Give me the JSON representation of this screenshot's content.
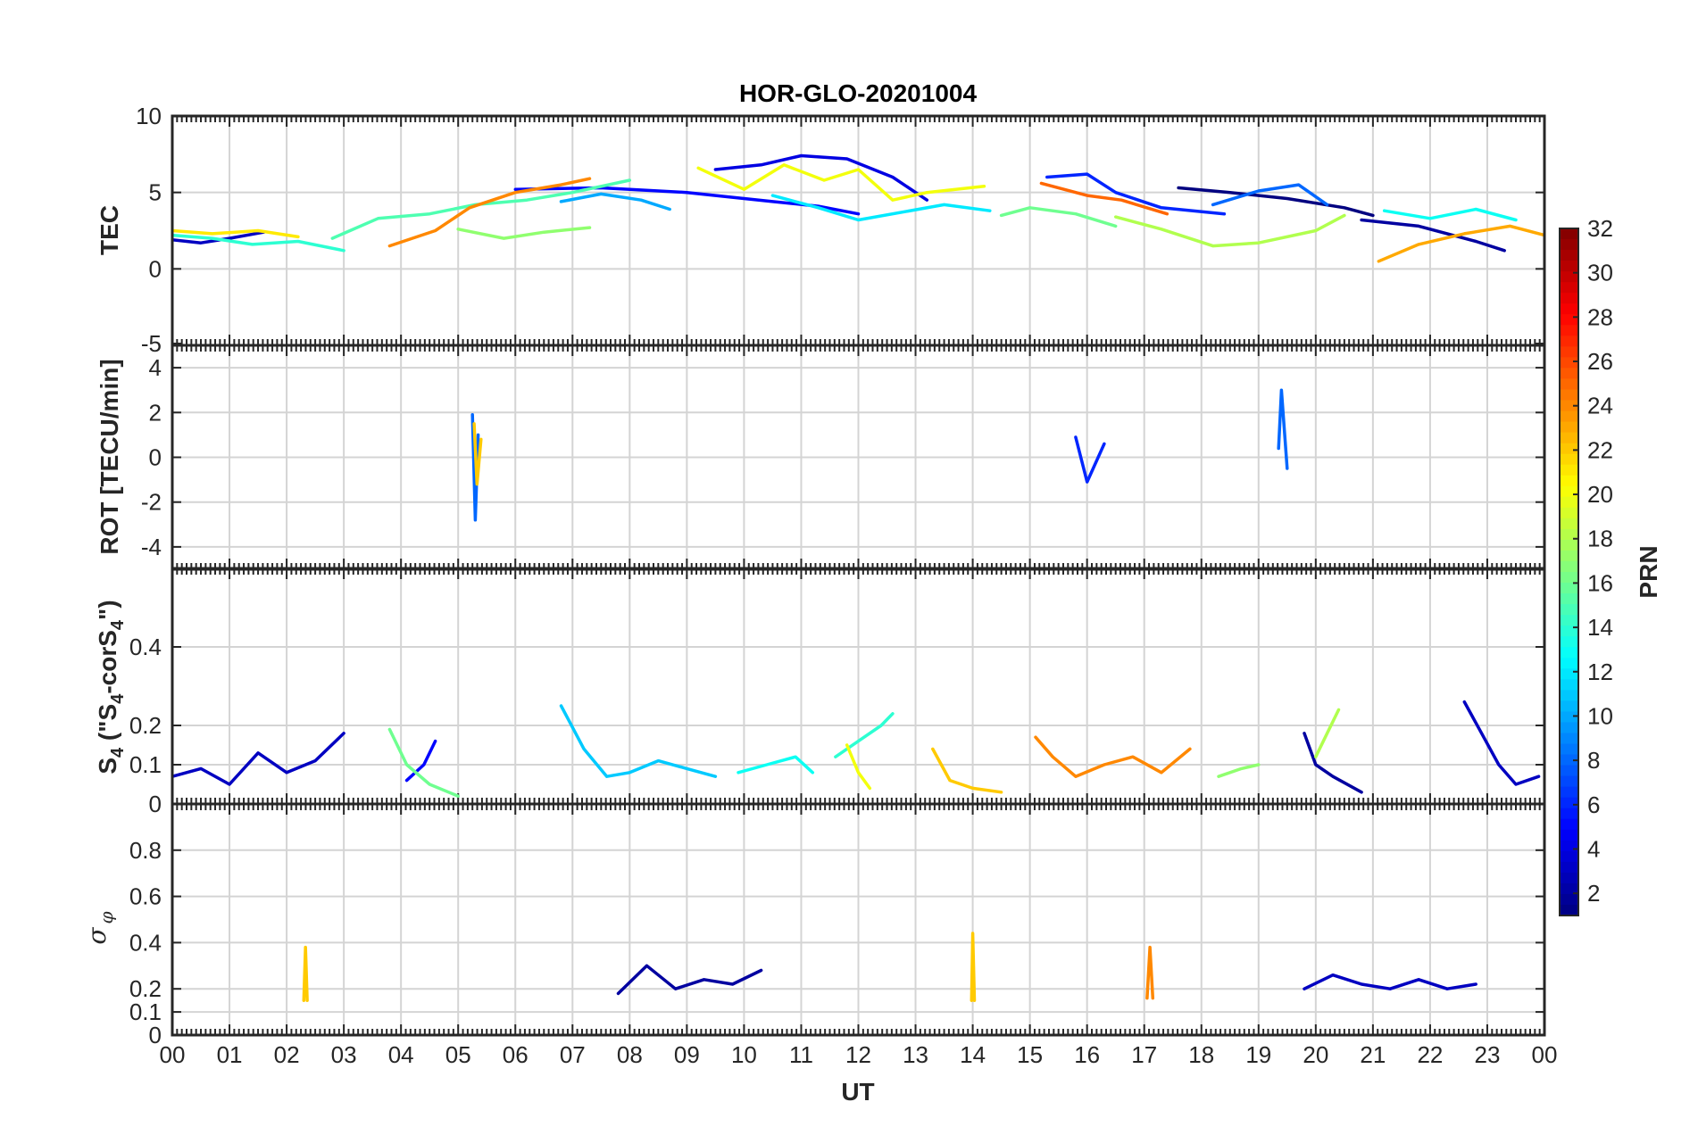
{
  "chart_data": {
    "type": "line",
    "title": "HOR-GLO-20201004",
    "xlabel": "UT",
    "x_ticks": [
      "00",
      "01",
      "02",
      "03",
      "04",
      "05",
      "06",
      "07",
      "08",
      "09",
      "10",
      "11",
      "12",
      "13",
      "14",
      "15",
      "16",
      "17",
      "18",
      "19",
      "20",
      "21",
      "22",
      "23",
      "00"
    ],
    "xlim": [
      0,
      24
    ],
    "colorbar": {
      "label": "PRN",
      "range": [
        1,
        32
      ],
      "ticks": [
        "2",
        "4",
        "6",
        "8",
        "10",
        "12",
        "14",
        "16",
        "18",
        "20",
        "22",
        "24",
        "26",
        "28",
        "30",
        "32"
      ],
      "colormap": "jet"
    },
    "panels": [
      {
        "name": "TEC",
        "ylabel": "TEC",
        "ylim": [
          -5,
          10
        ],
        "ytick_labels": [
          "-5",
          "0",
          "5",
          "10"
        ],
        "series": [
          {
            "prn": 1,
            "x": [
              17.6,
              18.5,
              19.5,
              20.5,
              21.0
            ],
            "y": [
              5.3,
              5.0,
              4.6,
              4.0,
              3.5
            ]
          },
          {
            "prn": 2,
            "x": [
              20.8,
              21.8,
              22.8,
              23.3
            ],
            "y": [
              3.2,
              2.8,
              1.8,
              1.2
            ]
          },
          {
            "prn": 3,
            "x": [
              0.0,
              0.5,
              1.0,
              1.6
            ],
            "y": [
              1.9,
              1.7,
              2.0,
              2.4
            ]
          },
          {
            "prn": 4,
            "x": [
              9.5,
              10.3,
              11.0,
              11.8,
              12.6,
              13.2
            ],
            "y": [
              6.5,
              6.8,
              7.4,
              7.2,
              6.0,
              4.5
            ]
          },
          {
            "prn": 5,
            "x": [
              6.0,
              7.5,
              9.0,
              10.5,
              11.3,
              12.0
            ],
            "y": [
              5.2,
              5.3,
              5.0,
              4.4,
              4.1,
              3.6
            ]
          },
          {
            "prn": 6,
            "x": [
              15.3,
              16.0,
              16.5,
              17.3,
              18.4
            ],
            "y": [
              6.0,
              6.2,
              5.0,
              4.0,
              3.6
            ]
          },
          {
            "prn": 8,
            "x": [
              18.2,
              19.0,
              19.7,
              20.2
            ],
            "y": [
              4.2,
              5.1,
              5.5,
              4.2
            ]
          },
          {
            "prn": 10,
            "x": [
              6.8,
              7.5,
              8.2,
              8.7
            ],
            "y": [
              4.4,
              4.9,
              4.5,
              3.9
            ]
          },
          {
            "prn": 12,
            "x": [
              10.5,
              11.3,
              12.0,
              13.5,
              14.3
            ],
            "y": [
              4.8,
              4.0,
              3.2,
              4.2,
              3.8
            ]
          },
          {
            "prn": 13,
            "x": [
              21.2,
              22.0,
              22.8,
              23.5
            ],
            "y": [
              3.8,
              3.3,
              3.9,
              3.2
            ]
          },
          {
            "prn": 14,
            "x": [
              0.0,
              0.7,
              1.4,
              2.2,
              3.0
            ],
            "y": [
              2.2,
              2.0,
              1.6,
              1.8,
              1.2
            ]
          },
          {
            "prn": 15,
            "x": [
              2.8,
              3.6,
              4.5,
              5.3,
              6.2,
              7.0,
              8.0
            ],
            "y": [
              2.0,
              3.3,
              3.6,
              4.2,
              4.5,
              5.0,
              5.8
            ]
          },
          {
            "prn": 16,
            "x": [
              14.5,
              15.0,
              15.8,
              16.5
            ],
            "y": [
              3.5,
              4.0,
              3.6,
              2.8
            ]
          },
          {
            "prn": 17,
            "x": [
              5.0,
              5.8,
              6.5,
              7.3
            ],
            "y": [
              2.6,
              2.0,
              2.4,
              2.7
            ]
          },
          {
            "prn": 18,
            "x": [
              16.5,
              17.3,
              18.2,
              19.0,
              20.0,
              20.5
            ],
            "y": [
              3.4,
              2.6,
              1.5,
              1.7,
              2.5,
              3.5
            ]
          },
          {
            "prn": 20,
            "x": [
              9.2,
              10.0,
              10.7,
              11.4,
              12.0,
              12.6,
              13.2,
              14.2
            ],
            "y": [
              6.6,
              5.2,
              6.8,
              5.8,
              6.5,
              4.5,
              5.0,
              5.4
            ]
          },
          {
            "prn": 21,
            "x": [
              0.0,
              0.7,
              1.5,
              2.2
            ],
            "y": [
              2.5,
              2.3,
              2.5,
              2.1
            ]
          },
          {
            "prn": 23,
            "x": [
              21.1,
              21.8,
              22.6,
              23.4,
              24.0
            ],
            "y": [
              0.5,
              1.6,
              2.3,
              2.8,
              2.2
            ]
          },
          {
            "prn": 24,
            "x": [
              3.8,
              4.6,
              5.2,
              6.0,
              6.8,
              7.3
            ],
            "y": [
              1.5,
              2.5,
              4.0,
              5.0,
              5.5,
              5.9
            ]
          },
          {
            "prn": 25,
            "x": [
              15.2,
              16.0,
              16.6,
              17.4
            ],
            "y": [
              5.6,
              4.8,
              4.5,
              3.6
            ]
          }
        ]
      },
      {
        "name": "ROT",
        "ylabel": "ROT [TECU/min]",
        "ylim": [
          -5,
          5
        ],
        "ytick_labels": [
          "-4",
          "-2",
          "0",
          "2",
          "4"
        ],
        "series": [
          {
            "prn": 8,
            "x": [
              5.25,
              5.3,
              5.35
            ],
            "y": [
              1.9,
              -2.8,
              1.0
            ]
          },
          {
            "prn": 8,
            "x": [
              19.35,
              19.4,
              19.5
            ],
            "y": [
              0.4,
              3.0,
              -0.5
            ]
          },
          {
            "prn": 6,
            "x": [
              15.8,
              16.0,
              16.3
            ],
            "y": [
              0.9,
              -1.1,
              0.6
            ]
          },
          {
            "prn": 22,
            "x": [
              5.28,
              5.33,
              5.4
            ],
            "y": [
              1.5,
              -1.2,
              0.8
            ]
          }
        ]
      },
      {
        "name": "S4",
        "ylabel": "S4 (\"S4-corS4\")",
        "ylim": [
          0,
          0.6
        ],
        "ytick_labels": [
          "0",
          "0.1",
          "0.2",
          "0.4"
        ],
        "series": [
          {
            "prn": 3,
            "x": [
              0.0,
              0.5,
              1.0,
              1.5,
              2.0,
              2.5,
              3.0
            ],
            "y": [
              0.07,
              0.09,
              0.05,
              0.13,
              0.08,
              0.11,
              0.18
            ]
          },
          {
            "prn": 5,
            "x": [
              4.1,
              4.4,
              4.6
            ],
            "y": [
              0.06,
              0.1,
              0.16
            ]
          },
          {
            "prn": 11,
            "x": [
              6.8,
              7.2,
              7.6,
              8.0,
              8.5,
              9.0,
              9.5
            ],
            "y": [
              0.25,
              0.14,
              0.07,
              0.08,
              0.11,
              0.09,
              0.07
            ]
          },
          {
            "prn": 13,
            "x": [
              9.9,
              10.4,
              10.9,
              11.2
            ],
            "y": [
              0.08,
              0.1,
              0.12,
              0.08
            ]
          },
          {
            "prn": 14,
            "x": [
              11.6,
              12.0,
              12.4,
              12.6
            ],
            "y": [
              0.12,
              0.16,
              0.2,
              0.23
            ]
          },
          {
            "prn": 16,
            "x": [
              3.8,
              4.1,
              4.5,
              5.0
            ],
            "y": [
              0.19,
              0.1,
              0.05,
              0.02
            ]
          },
          {
            "prn": 20,
            "x": [
              11.8,
              12.0,
              12.2
            ],
            "y": [
              0.15,
              0.08,
              0.04
            ]
          },
          {
            "prn": 22,
            "x": [
              13.3,
              13.6,
              14.0,
              14.5
            ],
            "y": [
              0.14,
              0.06,
              0.04,
              0.03
            ]
          },
          {
            "prn": 24,
            "x": [
              15.1,
              15.4,
              15.8,
              16.3,
              16.8,
              17.3,
              17.8
            ],
            "y": [
              0.17,
              0.12,
              0.07,
              0.1,
              0.12,
              0.08,
              0.14
            ]
          },
          {
            "prn": 17,
            "x": [
              18.3,
              18.7,
              19.0
            ],
            "y": [
              0.07,
              0.09,
              0.1
            ]
          },
          {
            "prn": 2,
            "x": [
              19.8,
              20.0,
              20.3,
              20.8
            ],
            "y": [
              0.18,
              0.1,
              0.07,
              0.03
            ]
          },
          {
            "prn": 18,
            "x": [
              20.0,
              20.2,
              20.4
            ],
            "y": [
              0.12,
              0.18,
              0.24
            ]
          },
          {
            "prn": 3,
            "x": [
              22.6,
              22.9,
              23.2,
              23.5,
              23.9
            ],
            "y": [
              0.26,
              0.18,
              0.1,
              0.05,
              0.07
            ]
          }
        ]
      },
      {
        "name": "sigma_phi",
        "ylabel": "σ φ",
        "ylim": [
          0,
          1
        ],
        "ytick_labels": [
          "0",
          "0.1",
          "0.2",
          "0.4",
          "0.6",
          "0.8"
        ],
        "series": [
          {
            "prn": 2,
            "x": [
              7.8,
              8.3,
              8.8,
              9.3,
              9.8,
              10.3
            ],
            "y": [
              0.18,
              0.3,
              0.2,
              0.24,
              0.22,
              0.28
            ]
          },
          {
            "prn": 3,
            "x": [
              19.8,
              20.3,
              20.8,
              21.3,
              21.8,
              22.3,
              22.8
            ],
            "y": [
              0.2,
              0.26,
              0.22,
              0.2,
              0.24,
              0.2,
              0.22
            ]
          },
          {
            "prn": 22,
            "x": [
              2.3,
              2.33,
              2.36
            ],
            "y": [
              0.15,
              0.38,
              0.15
            ]
          },
          {
            "prn": 22,
            "x": [
              13.98,
              14.0,
              14.03
            ],
            "y": [
              0.15,
              0.44,
              0.15
            ]
          },
          {
            "prn": 24,
            "x": [
              17.05,
              17.1,
              17.15
            ],
            "y": [
              0.16,
              0.38,
              0.16
            ]
          }
        ]
      }
    ]
  }
}
